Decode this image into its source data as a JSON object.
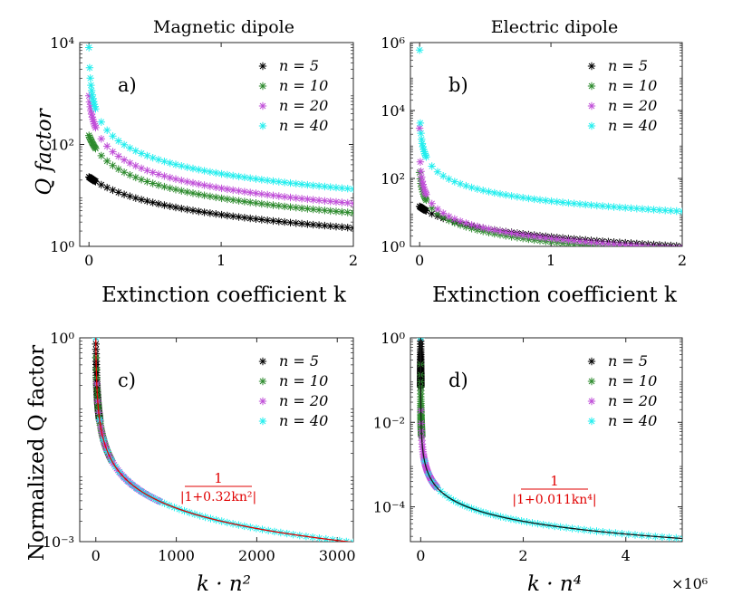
{
  "figure": {
    "ylabel_top": "Q factor",
    "ylabel_bottom": "Normalized Q factor",
    "xlabel_top_left": "Extinction coefficient k",
    "xlabel_top_right": "Extinction coefficient k",
    "xlabel_bottom_left": "k · n²",
    "xlabel_bottom_right": "k · n⁴"
  },
  "series_colors": {
    "n = 5": "#000000",
    "n = 10": "#2e8b2e",
    "n = 20": "#c04fd8",
    "n = 40": "#22eeee"
  },
  "fit_color": "#e00000",
  "chart_data": [
    {
      "type": "scatter",
      "panel": "a)",
      "title": "Magnetic dipole",
      "xlabel": "Extinction coefficient k",
      "ylabel": "Q factor",
      "xscale": "linear",
      "yscale": "log",
      "xlim": [
        -0.07,
        2.0
      ],
      "ylim": [
        1,
        10000
      ],
      "xticks": [
        0,
        1,
        2
      ],
      "yticks": [
        1,
        100,
        10000
      ],
      "ytick_labels": [
        "10⁰",
        "10²",
        "10⁴"
      ],
      "xtick_labels": [
        "0",
        "1",
        "2"
      ],
      "legend": "top-right",
      "series": [
        {
          "name": "n = 5",
          "q0": 23,
          "a": 4.5,
          "p": 1
        },
        {
          "name": "n = 10",
          "q0": 150,
          "a": 16,
          "p": 1
        },
        {
          "name": "n = 20",
          "q0": 900,
          "a": 64,
          "p": 1
        },
        {
          "name": "n = 40",
          "q0": 8000,
          "a": 300,
          "p": 1
        }
      ]
    },
    {
      "type": "scatter",
      "panel": "b)",
      "title": "Electric dipole",
      "xlabel": "Extinction coefficient k",
      "ylabel": "",
      "xscale": "linear",
      "yscale": "log",
      "xlim": [
        -0.07,
        2.0
      ],
      "ylim": [
        1,
        1000000
      ],
      "xticks": [
        0,
        1,
        2
      ],
      "yticks": [
        1,
        100,
        10000,
        1000000
      ],
      "ytick_labels": [
        "10⁰",
        "10²",
        "10⁴",
        "10⁶"
      ],
      "xtick_labels": [
        "0",
        "1",
        "2"
      ],
      "legend": "top-right",
      "series": [
        {
          "name": "n = 5",
          "q0": 15,
          "a": 6.9,
          "p": 1
        },
        {
          "name": "n = 10",
          "q0": 150,
          "a": 110,
          "p": 1
        },
        {
          "name": "n = 20",
          "q0": 3000,
          "a": 1760,
          "p": 1
        },
        {
          "name": "n = 40",
          "q0": 600000,
          "a": 28000,
          "p": 1
        }
      ]
    },
    {
      "type": "scatter",
      "panel": "c)",
      "title": "",
      "xlabel": "k · n²",
      "ylabel": "Normalized Q factor",
      "xscale": "linear",
      "yscale": "log",
      "xlim": [
        -200,
        3200
      ],
      "ylim": [
        0.001,
        1
      ],
      "xticks": [
        0,
        1000,
        2000,
        3000
      ],
      "yticks": [
        0.001,
        1
      ],
      "ytick_labels": [
        "10⁻³",
        "10⁰"
      ],
      "xtick_labels": [
        "0",
        "1000",
        "2000",
        "3000"
      ],
      "legend": "top-right",
      "fit": {
        "label_num": "1",
        "label_den": "|1+0.32kn²|",
        "a": 0.32,
        "p": 1
      },
      "series": [
        {
          "name": "n = 5",
          "xmax": 50
        },
        {
          "name": "n = 10",
          "xmax": 200
        },
        {
          "name": "n = 20",
          "xmax": 800
        },
        {
          "name": "n = 40",
          "xmax": 3200
        }
      ]
    },
    {
      "type": "scatter",
      "panel": "d)",
      "title": "",
      "xlabel": "k · n⁴",
      "ylabel": "",
      "xscale": "linear",
      "yscale": "log",
      "xlim": [
        -200000,
        5100000
      ],
      "ylim": [
        1.5e-05,
        1
      ],
      "xticks": [
        0,
        2000000,
        4000000
      ],
      "yticks": [
        0.0001,
        0.01,
        1
      ],
      "ytick_labels": [
        "10⁻⁴",
        "10⁻²",
        "10⁰"
      ],
      "xtick_labels": [
        "0",
        "2",
        "4"
      ],
      "x_multiplier": "×10⁶",
      "legend": "top-right",
      "fit": {
        "label_num": "1",
        "label_den": "|1+0.011kn⁴|",
        "a": 0.011,
        "p": 1
      },
      "series": [
        {
          "name": "n = 5",
          "xmax": 1250
        },
        {
          "name": "n = 10",
          "xmax": 20000
        },
        {
          "name": "n = 20",
          "xmax": 320000
        },
        {
          "name": "n = 40",
          "xmax": 5120000
        }
      ]
    }
  ]
}
